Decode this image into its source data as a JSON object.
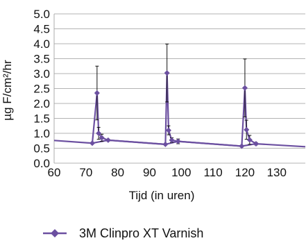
{
  "chart_data": {
    "type": "line",
    "title": "",
    "xlabel": "Tijd (in uren)",
    "ylabel": "µg F/cm²/hr",
    "xlim": [
      60,
      139
    ],
    "ylim": [
      0,
      5
    ],
    "x_ticks": [
      "60",
      "70",
      "80",
      "90",
      "100",
      "110",
      "120",
      "130"
    ],
    "y_ticks": [
      "0.0",
      "0.5",
      "1.0",
      "1.5",
      "2.0",
      "2.5",
      "3.0",
      "3.5",
      "4.0",
      "4.5",
      "5.0"
    ],
    "grid": "horizontal",
    "legend": "bottom",
    "color": "#6b4fa0",
    "error_bar_color": "#111111",
    "series": [
      {
        "name": "3M Clinpro XT Varnish",
        "points": [
          {
            "x": 72,
            "y": 0.67,
            "err": 0
          },
          {
            "x": 73.5,
            "y": 2.35,
            "err": 0.9
          },
          {
            "x": 74,
            "y": 1.0,
            "err": 0.2
          },
          {
            "x": 75,
            "y": 0.85,
            "err": 0.12
          },
          {
            "x": 77,
            "y": 0.77,
            "err": 0.03
          },
          {
            "x": 95,
            "y": 0.63,
            "err": 0
          },
          {
            "x": 95.5,
            "y": 3.02,
            "err": 0.97
          },
          {
            "x": 96,
            "y": 1.1,
            "err": 0.15
          },
          {
            "x": 97,
            "y": 0.77,
            "err": 0.08
          },
          {
            "x": 99,
            "y": 0.73,
            "err": 0.08
          },
          {
            "x": 119,
            "y": 0.57,
            "err": 0
          },
          {
            "x": 120,
            "y": 2.52,
            "err": 0.97
          },
          {
            "x": 120.5,
            "y": 1.12,
            "err": 0.32
          },
          {
            "x": 121.5,
            "y": 0.78,
            "err": 0.15
          },
          {
            "x": 123.5,
            "y": 0.65,
            "err": 0.04
          }
        ],
        "baseline": [
          {
            "x": 60,
            "y": 0.76
          },
          {
            "x": 72,
            "y": 0.67
          },
          {
            "x": 77,
            "y": 0.77
          },
          {
            "x": 95,
            "y": 0.63
          },
          {
            "x": 99,
            "y": 0.73
          },
          {
            "x": 119,
            "y": 0.57
          },
          {
            "x": 123.5,
            "y": 0.65
          },
          {
            "x": 139,
            "y": 0.55
          }
        ]
      }
    ]
  }
}
